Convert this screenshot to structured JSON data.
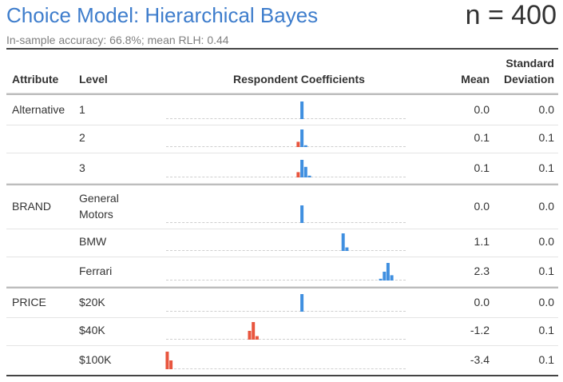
{
  "header": {
    "title": "Choice Model: Hierarchical Bayes",
    "n_label": "n = 400",
    "subtitle": "In-sample accuracy: 66.8%; mean RLH: 0.44"
  },
  "columns": {
    "attribute": "Attribute",
    "level": "Level",
    "coefficients": "Respondent Coefficients",
    "mean": "Mean",
    "sd_line1": "Standard",
    "sd_line2": "Deviation"
  },
  "colors": {
    "positive": "#3f8fe0",
    "negative": "#e8553e",
    "title": "#3e7dcc"
  },
  "axis_range": [
    -3.8,
    2.6
  ],
  "rows": [
    {
      "attribute": "Alternative",
      "level": "1",
      "level2": "",
      "mean": "0.0",
      "sd": "0.0",
      "hist": [
        {
          "x": 0.0,
          "h": 1.0
        }
      ]
    },
    {
      "attribute": "",
      "level": "2",
      "level2": "",
      "mean": "0.1",
      "sd": "0.1",
      "hist": [
        {
          "x": -0.1,
          "h": 0.3
        },
        {
          "x": 0.0,
          "h": 1.0
        },
        {
          "x": 0.1,
          "h": 0.1
        }
      ]
    },
    {
      "attribute": "",
      "level": "3",
      "level2": "",
      "mean": "0.1",
      "sd": "0.1",
      "hist": [
        {
          "x": -0.1,
          "h": 0.3
        },
        {
          "x": 0.0,
          "h": 1.0
        },
        {
          "x": 0.1,
          "h": 0.6
        },
        {
          "x": 0.2,
          "h": 0.1
        }
      ]
    },
    {
      "attribute": "BRAND",
      "level": "General",
      "level2": "Motors",
      "mean": "0.0",
      "sd": "0.0",
      "hist": [
        {
          "x": 0.0,
          "h": 1.0
        }
      ]
    },
    {
      "attribute": "",
      "level": "BMW",
      "level2": "",
      "mean": "1.1",
      "sd": "0.0",
      "hist": [
        {
          "x": 1.1,
          "h": 1.0
        },
        {
          "x": 1.2,
          "h": 0.2
        }
      ]
    },
    {
      "attribute": "",
      "level": "Ferrari",
      "level2": "",
      "mean": "2.3",
      "sd": "0.1",
      "hist": [
        {
          "x": 2.1,
          "h": 0.1
        },
        {
          "x": 2.2,
          "h": 0.5
        },
        {
          "x": 2.3,
          "h": 1.0
        },
        {
          "x": 2.4,
          "h": 0.3
        }
      ]
    },
    {
      "attribute": "PRICE",
      "level": "$20K",
      "level2": "",
      "mean": "0.0",
      "sd": "0.0",
      "hist": [
        {
          "x": 0.0,
          "h": 1.0
        }
      ]
    },
    {
      "attribute": "",
      "level": "$40K",
      "level2": "",
      "mean": "-1.2",
      "sd": "0.1",
      "hist": [
        {
          "x": -1.4,
          "h": 0.5
        },
        {
          "x": -1.3,
          "h": 1.0
        },
        {
          "x": -1.2,
          "h": 0.2
        }
      ]
    },
    {
      "attribute": "",
      "level": "$100K",
      "level2": "",
      "mean": "-3.4",
      "sd": "0.1",
      "hist": [
        {
          "x": -3.6,
          "h": 1.0
        },
        {
          "x": -3.5,
          "h": 0.5
        }
      ]
    }
  ]
}
